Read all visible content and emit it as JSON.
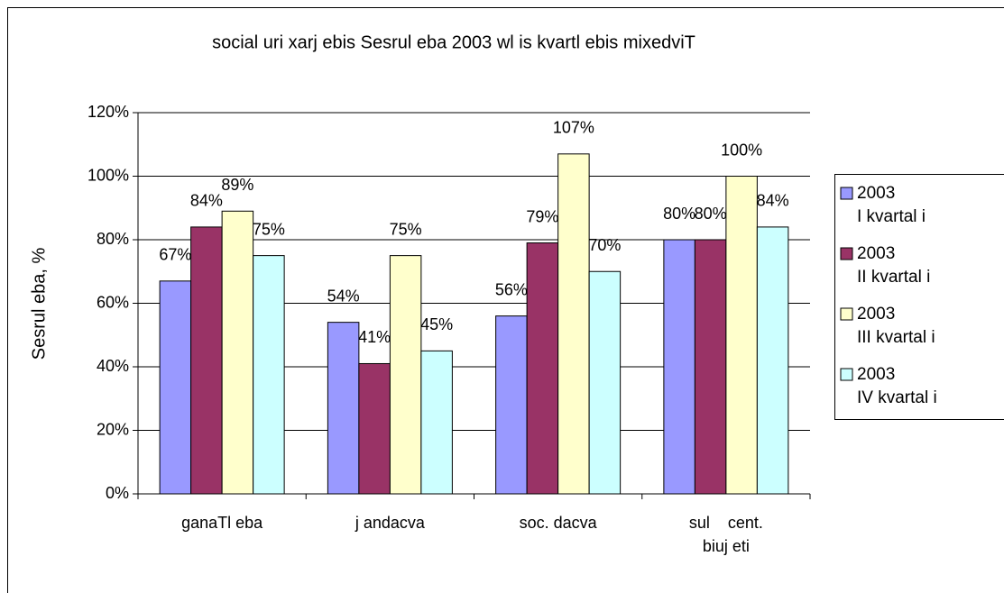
{
  "chart_data": {
    "type": "bar",
    "title": "social uri xarj ebis Sesrul eba 2003 wl is kvartl ebis mixedviT",
    "y_label": "Sesrul eba, %",
    "categories": [
      "ganaTl eba",
      "j andacva",
      "soc. dacva",
      "sul    cent.\nbiuj eti"
    ],
    "series": [
      {
        "name": "2003\nI kvartal i",
        "color": "#9999ff",
        "values": [
          67,
          54,
          56,
          80
        ],
        "value_labels": [
          "67%",
          "54%",
          "56%",
          "80%"
        ]
      },
      {
        "name": "2003\nII kvartal i",
        "color": "#993366",
        "values": [
          84,
          41,
          79,
          80
        ],
        "value_labels": [
          "84%",
          "41%",
          "79%",
          "80%"
        ]
      },
      {
        "name": "2003\nIII kvartal i",
        "color": "#ffffcc",
        "values": [
          89,
          75,
          107,
          100
        ],
        "value_labels": [
          "89%",
          "75%",
          "107%",
          "100%"
        ]
      },
      {
        "name": "2003\nIV kvartal i",
        "color": "#ccffff",
        "values": [
          75,
          45,
          70,
          84
        ],
        "value_labels": [
          "75%",
          "45%",
          "70%",
          "84%"
        ]
      }
    ],
    "ylim": [
      0,
      120
    ],
    "yticks": [
      {
        "value": 0,
        "label": "0%"
      },
      {
        "value": 20,
        "label": "20%"
      },
      {
        "value": 40,
        "label": "40%"
      },
      {
        "value": 60,
        "label": "60%"
      },
      {
        "value": 80,
        "label": "80%"
      },
      {
        "value": 100,
        "label": "100%"
      },
      {
        "value": 120,
        "label": "120%"
      }
    ],
    "grid": true,
    "legend": "right"
  }
}
